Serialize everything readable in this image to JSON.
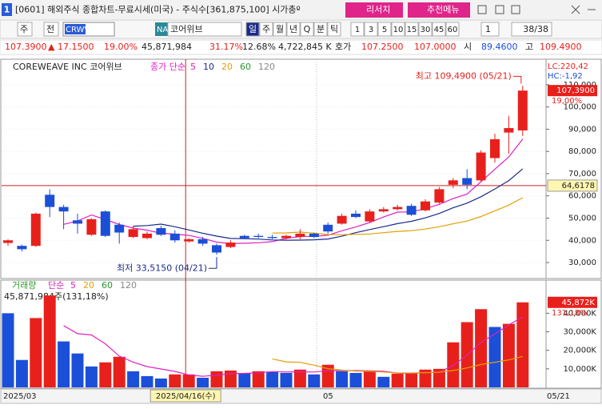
{
  "title_bar": {
    "window_id": "1",
    "title": "[0601] 해외주식 종합차트-무료시세(미국) - 주식수[361,875,100] 시가총º",
    "buttons": [
      "리서치",
      "추천메뉴"
    ]
  },
  "toolbar": {
    "period_unit": "주",
    "range": "전",
    "symbol": "CRWV",
    "market": "NA",
    "name": "코어위브",
    "periods": [
      "일",
      "주",
      "월",
      "년",
      "Q",
      "분",
      "틱"
    ],
    "intervals": [
      "1",
      "3",
      "5",
      "10",
      "15",
      "30",
      "45",
      "60"
    ],
    "count": "1",
    "page": "38/38"
  },
  "quote": {
    "price": "107.3900",
    "change": "▲ 17.1500",
    "change_pct": "19.00%",
    "volume": "45,871,984",
    "volume_ratio": "31.17%",
    "turnover": "12.68%",
    "amount": "4,722,845 K",
    "ask_label": "호가",
    "ask": "107.2500",
    "bid": "107.0000",
    "open_label": "시",
    "open": "89.4600",
    "high_label": "고",
    "high": "109.4900"
  },
  "price_chart": {
    "type": "candlestick",
    "name": "COREWEAVE INC 코어위브",
    "indicator": "종가 단순",
    "ma": [
      {
        "period": 5,
        "color": "#e020c0"
      },
      {
        "period": 10,
        "color": "#1a2a8a"
      },
      {
        "period": 20,
        "color": "#e0a000"
      },
      {
        "period": 60,
        "color": "#2a9a2a"
      },
      {
        "period": 120,
        "color": "#888888"
      }
    ],
    "open": [
      38800,
      37500,
      37500,
      60500,
      55000,
      49000,
      42500,
      53000,
      47000,
      41500,
      41000,
      45500,
      43000,
      39500,
      40500,
      37800,
      37000,
      42000,
      42000,
      41500,
      41000,
      41500,
      43000,
      47000,
      47500,
      52000,
      48500,
      53000,
      54000,
      55500,
      53500,
      57000,
      65000,
      68000,
      67000,
      77000,
      88500,
      89460
    ],
    "high": [
      40500,
      38000,
      52500,
      63000,
      56000,
      52000,
      50000,
      53500,
      48000,
      46500,
      44000,
      46500,
      44500,
      41000,
      41500,
      38500,
      40000,
      42500,
      43000,
      42500,
      42500,
      45000,
      43500,
      48000,
      52000,
      53500,
      54000,
      55000,
      56000,
      56500,
      58500,
      64000,
      68000,
      72000,
      80500,
      88000,
      96000,
      109490
    ],
    "low": [
      37500,
      35000,
      37000,
      50500,
      45000,
      43000,
      42000,
      41500,
      38500,
      41000,
      40500,
      42000,
      39000,
      39000,
      37500,
      33515,
      36500,
      40500,
      41000,
      40500,
      40500,
      40500,
      41000,
      43000,
      47000,
      50000,
      48000,
      52500,
      53500,
      51000,
      53000,
      56500,
      63500,
      63000,
      66500,
      75000,
      79000,
      87000
    ],
    "close": [
      40000,
      36000,
      52000,
      55000,
      53000,
      47500,
      49500,
      42000,
      43500,
      45000,
      43000,
      42500,
      40000,
      40500,
      38500,
      34500,
      39000,
      41000,
      41500,
      41000,
      42000,
      43000,
      41500,
      44000,
      51000,
      50500,
      53000,
      54000,
      55000,
      51500,
      57500,
      63000,
      67000,
      65000,
      79500,
      85500,
      90500,
      107390
    ],
    "up_color": "#e8201c",
    "down_color": "#1c4fd8",
    "ylim": [
      22800,
      121500
    ],
    "yticks": [
      {
        "value": 30000,
        "label": "30,000"
      },
      {
        "value": 40000,
        "label": "40,000"
      },
      {
        "value": 50000,
        "label": "50,000"
      },
      {
        "value": 60000,
        "label": "60,000"
      },
      {
        "value": 70000,
        "label": "70,000"
      },
      {
        "value": 80000,
        "label": "80,000"
      },
      {
        "value": 90000,
        "label": "90,000"
      },
      {
        "value": 100000,
        "label": "100,000"
      },
      {
        "value": 110000,
        "label": "110,000"
      }
    ],
    "high_note": "최고 109,4900 (05/21)",
    "low_note": "최저 33,5150 (04/21)",
    "lc": "LC:220,42",
    "hc": "HC:-1,92",
    "last_label": "107,3900",
    "last_pct": "19,00%",
    "cursor": {
      "value": 64617.8,
      "label": "64,6178"
    }
  },
  "volume_chart": {
    "type": "bar",
    "name": "거래량",
    "indicator": "단순",
    "ma": [
      {
        "period": 5,
        "color": "#e020c0"
      },
      {
        "period": 20,
        "color": "#e0a000"
      },
      {
        "period": 60,
        "color": "#2a9a2a"
      },
      {
        "period": 120,
        "color": "#888888"
      }
    ],
    "values": [
      40000,
      14800,
      37400,
      49600,
      24800,
      18300,
      11300,
      13500,
      16500,
      8700,
      6100,
      4800,
      7000,
      7000,
      5200,
      8700,
      9100,
      7800,
      8700,
      8300,
      7800,
      9600,
      7000,
      12200,
      8700,
      7800,
      9100,
      5700,
      7400,
      7800,
      9600,
      10000,
      24300,
      35200,
      42200,
      32600,
      34300,
      45872
    ],
    "ylim": [
      0,
      57000
    ],
    "yticks": [
      {
        "value": 10000,
        "label": "10,000K"
      },
      {
        "value": 20000,
        "label": "20,000K"
      },
      {
        "value": 30000,
        "label": "30,000K"
      },
      {
        "value": 40000,
        "label": "40,000K"
      }
    ],
    "info": "45,871,984주(131,18%)",
    "last_label": "45,872K",
    "last_pct": "131,18%"
  },
  "x_axis": {
    "labels": [
      "2025/03",
      "05",
      "05/21"
    ],
    "cursor": "2025/04/16(수)"
  }
}
